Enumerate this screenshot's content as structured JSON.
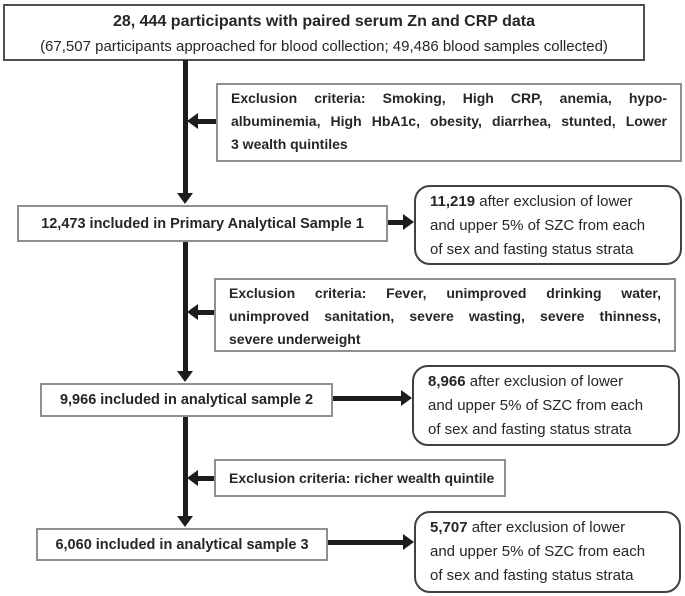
{
  "colors": {
    "background": "#ffffff",
    "text": "#262626",
    "line": "#1d1d1d",
    "border_light": "#8f8f8f",
    "border_dark": "#414141",
    "border_top_box": "#4f4f4f"
  },
  "top_box": {
    "line1": "28, 444 participants with paired serum Zn and CRP data",
    "line2": "(67,507 participants approached for blood collection; 49,486 blood samples collected)"
  },
  "flow": {
    "exclusion_boxes": [
      {
        "lines": [
          {
            "label": "Exclusion criteria:",
            "rest": "Smoking, High CRP, anemia, hypo-",
            "last": false
          },
          {
            "label": "",
            "rest": "albuminemia, High HbA1c, obesity, diarrhea, stunted, Lower",
            "last": false
          },
          {
            "label": "",
            "rest": "3 wealth quintiles",
            "last": true
          }
        ]
      },
      {
        "lines": [
          {
            "label": "Exclusion criteria:",
            "rest": "Fever, unimproved drinking water,",
            "last": false
          },
          {
            "label": "",
            "rest": "unimproved sanitation, severe wasting, severe thinness,",
            "last": false
          },
          {
            "label": "",
            "rest": "severe underweight",
            "last": true
          }
        ]
      },
      {
        "lines": [
          {
            "label": "Exclusion criteria:",
            "rest": "richer wealth quintile",
            "last": true
          }
        ]
      }
    ],
    "sample_boxes": [
      "12,473 included in Primary Analytical Sample 1",
      "9,966 included in analytical sample 2",
      "6,060 included in analytical sample 3"
    ],
    "result_boxes": [
      {
        "number": "11,219",
        "lines": [
          " after exclusion of lower",
          "and upper 5% of SZC from each",
          "of sex and fasting status strata"
        ]
      },
      {
        "number": "8,966",
        "lines": [
          " after exclusion of lower",
          "and upper 5% of SZC from each",
          "of sex and fasting status strata"
        ]
      },
      {
        "number": "5,707",
        "lines": [
          " after exclusion of lower",
          "and upper 5% of SZC from each",
          "of sex and fasting status strata"
        ]
      }
    ]
  }
}
